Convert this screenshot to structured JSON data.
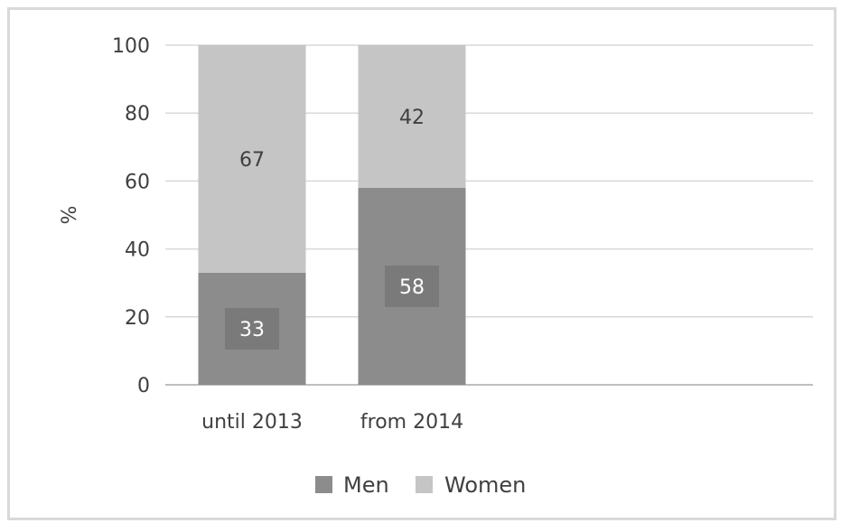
{
  "chart_data": {
    "type": "bar",
    "stacked": true,
    "categories": [
      "until 2013",
      "from 2014"
    ],
    "series": [
      {
        "name": "Men",
        "values": [
          33,
          58
        ],
        "color": "#8c8c8c",
        "label_box_color": "#7a7a7a",
        "label_color": "#ffffff"
      },
      {
        "name": "Women",
        "values": [
          67,
          42
        ],
        "color": "#c5c5c5",
        "label_color": "#404040"
      }
    ],
    "title": "",
    "xlabel": "",
    "ylabel": "%",
    "ylim": [
      0,
      100
    ],
    "yticks": [
      0,
      20,
      40,
      60,
      80,
      100
    ],
    "grid": true,
    "legend": "bottom",
    "data_labels": true
  }
}
